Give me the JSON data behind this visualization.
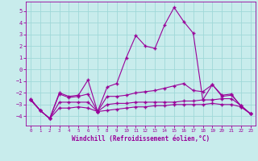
{
  "x": [
    0,
    1,
    2,
    3,
    4,
    5,
    6,
    7,
    8,
    9,
    10,
    11,
    12,
    13,
    14,
    15,
    16,
    17,
    18,
    19,
    20,
    21,
    22,
    23
  ],
  "line1": [
    -2.5,
    -3.5,
    -4.2,
    -2.0,
    -2.3,
    -2.2,
    -0.9,
    -3.6,
    -1.5,
    -1.2,
    1.0,
    2.9,
    2.0,
    1.8,
    3.8,
    5.3,
    4.1,
    3.1,
    -2.6,
    -1.3,
    -2.2,
    -2.1,
    -3.2,
    -3.8
  ],
  "line2": [
    -2.6,
    -3.5,
    -4.2,
    -2.1,
    -2.4,
    -2.3,
    -2.1,
    -3.6,
    -2.3,
    -2.3,
    -2.2,
    -2.0,
    -1.9,
    -1.8,
    -1.6,
    -1.4,
    -1.2,
    -1.8,
    -1.9,
    -1.3,
    -2.3,
    -2.2,
    -3.1,
    -3.8
  ],
  "line3": [
    -2.6,
    -3.5,
    -4.2,
    -2.8,
    -2.8,
    -2.8,
    -2.8,
    -3.6,
    -3.0,
    -2.9,
    -2.9,
    -2.8,
    -2.8,
    -2.8,
    -2.8,
    -2.8,
    -2.7,
    -2.7,
    -2.6,
    -2.6,
    -2.5,
    -2.5,
    -3.1,
    -3.8
  ],
  "line4": [
    -2.6,
    -3.5,
    -4.2,
    -3.3,
    -3.3,
    -3.2,
    -3.3,
    -3.6,
    -3.5,
    -3.4,
    -3.3,
    -3.2,
    -3.2,
    -3.1,
    -3.1,
    -3.0,
    -3.0,
    -3.0,
    -3.0,
    -2.9,
    -3.0,
    -3.0,
    -3.2,
    -3.8
  ],
  "color": "#990099",
  "bg_color": "#c8ecec",
  "grid_color": "#a0d8d8",
  "xlabel": "Windchill (Refroidissement éolien,°C)",
  "ylim": [
    -4.8,
    5.8
  ],
  "xlim": [
    -0.5,
    23.5
  ],
  "yticks": [
    -4,
    -3,
    -2,
    -1,
    0,
    1,
    2,
    3,
    4,
    5
  ],
  "xticks": [
    0,
    1,
    2,
    3,
    4,
    5,
    6,
    7,
    8,
    9,
    10,
    11,
    12,
    13,
    14,
    15,
    16,
    17,
    18,
    19,
    20,
    21,
    22,
    23
  ]
}
